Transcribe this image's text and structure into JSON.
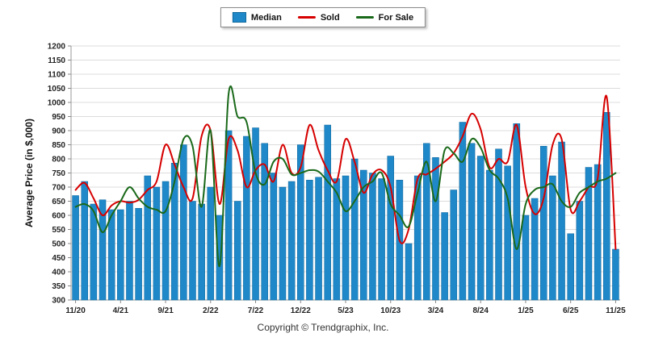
{
  "legend": {
    "items": [
      {
        "label": "Median",
        "color": "#1f88c9",
        "swatch": "bar"
      },
      {
        "label": "Sold",
        "color": "#d60000",
        "swatch": "line"
      },
      {
        "label": "For Sale",
        "color": "#1a691a",
        "swatch": "line"
      }
    ]
  },
  "footer": {
    "copyright": "Copyright © Trendgraphix, Inc."
  },
  "chart_data": {
    "type": "bar",
    "combo": "bar+line",
    "title": "",
    "xlabel": "",
    "ylabel": "Average Price (in $,000)",
    "ylim": [
      300,
      1200
    ],
    "ytick_step": 50,
    "grid": "horizontal",
    "legend_position": "top-center",
    "categories": [
      "11/20",
      "12/20",
      "1/21",
      "2/21",
      "3/21",
      "4/21",
      "5/21",
      "6/21",
      "7/21",
      "8/21",
      "9/21",
      "10/21",
      "11/21",
      "12/21",
      "1/22",
      "2/22",
      "3/22",
      "4/22",
      "5/22",
      "6/22",
      "7/22",
      "8/22",
      "9/22",
      "10/22",
      "11/22",
      "12/22",
      "1/23",
      "2/23",
      "3/23",
      "4/23",
      "5/23",
      "6/23",
      "7/23",
      "8/23",
      "9/23",
      "10/23",
      "11/23",
      "12/23",
      "1/24",
      "2/24",
      "3/24",
      "4/24",
      "5/24",
      "6/24",
      "7/24",
      "8/24",
      "9/24",
      "10/24",
      "11/24",
      "12/24",
      "1/25",
      "2/25",
      "3/25",
      "4/25",
      "5/25",
      "6/25",
      "7/25",
      "8/25",
      "9/25",
      "10/25",
      "11/25"
    ],
    "x_tick_indices": [
      0,
      5,
      10,
      15,
      20,
      25,
      30,
      35,
      40,
      45,
      50,
      55,
      60
    ],
    "x_tick_labels": [
      "11/20",
      "4/21",
      "9/21",
      "2/22",
      "7/22",
      "12/22",
      "5/23",
      "10/23",
      "3/24",
      "8/24",
      "1/25",
      "6/25",
      "11/25"
    ],
    "series": [
      {
        "name": "Median",
        "render": "bar",
        "color": "#1f88c9",
        "values": [
          670,
          720,
          640,
          655,
          620,
          620,
          650,
          625,
          740,
          700,
          720,
          785,
          850,
          650,
          640,
          700,
          600,
          900,
          650,
          880,
          910,
          855,
          750,
          700,
          720,
          850,
          725,
          735,
          920,
          730,
          740,
          800,
          760,
          750,
          730,
          810,
          725,
          500,
          740,
          855,
          805,
          610,
          690,
          930,
          855,
          810,
          760,
          835,
          775,
          925,
          600,
          660,
          845,
          740,
          860,
          535,
          650,
          770,
          780,
          965,
          480
        ]
      },
      {
        "name": "Sold",
        "render": "line",
        "color": "#d60000",
        "values": [
          690,
          715,
          660,
          600,
          635,
          650,
          645,
          655,
          690,
          720,
          850,
          780,
          700,
          660,
          880,
          900,
          640,
          870,
          830,
          700,
          760,
          780,
          720,
          850,
          750,
          770,
          920,
          830,
          760,
          720,
          870,
          790,
          680,
          745,
          760,
          700,
          510,
          550,
          730,
          745,
          765,
          790,
          820,
          880,
          960,
          905,
          770,
          800,
          790,
          920,
          700,
          605,
          660,
          850,
          870,
          620,
          650,
          700,
          730,
          1020,
          480
        ]
      },
      {
        "name": "For Sale",
        "render": "line",
        "color": "#1a691a",
        "values": [
          630,
          640,
          615,
          540,
          600,
          650,
          700,
          660,
          630,
          620,
          615,
          720,
          870,
          845,
          630,
          900,
          420,
          1030,
          950,
          930,
          750,
          710,
          790,
          800,
          745,
          750,
          760,
          755,
          720,
          680,
          615,
          650,
          700,
          720,
          750,
          640,
          600,
          560,
          680,
          790,
          650,
          830,
          820,
          790,
          870,
          840,
          760,
          730,
          660,
          480,
          640,
          690,
          700,
          710,
          650,
          630,
          680,
          700,
          720,
          730,
          750
        ]
      }
    ]
  }
}
